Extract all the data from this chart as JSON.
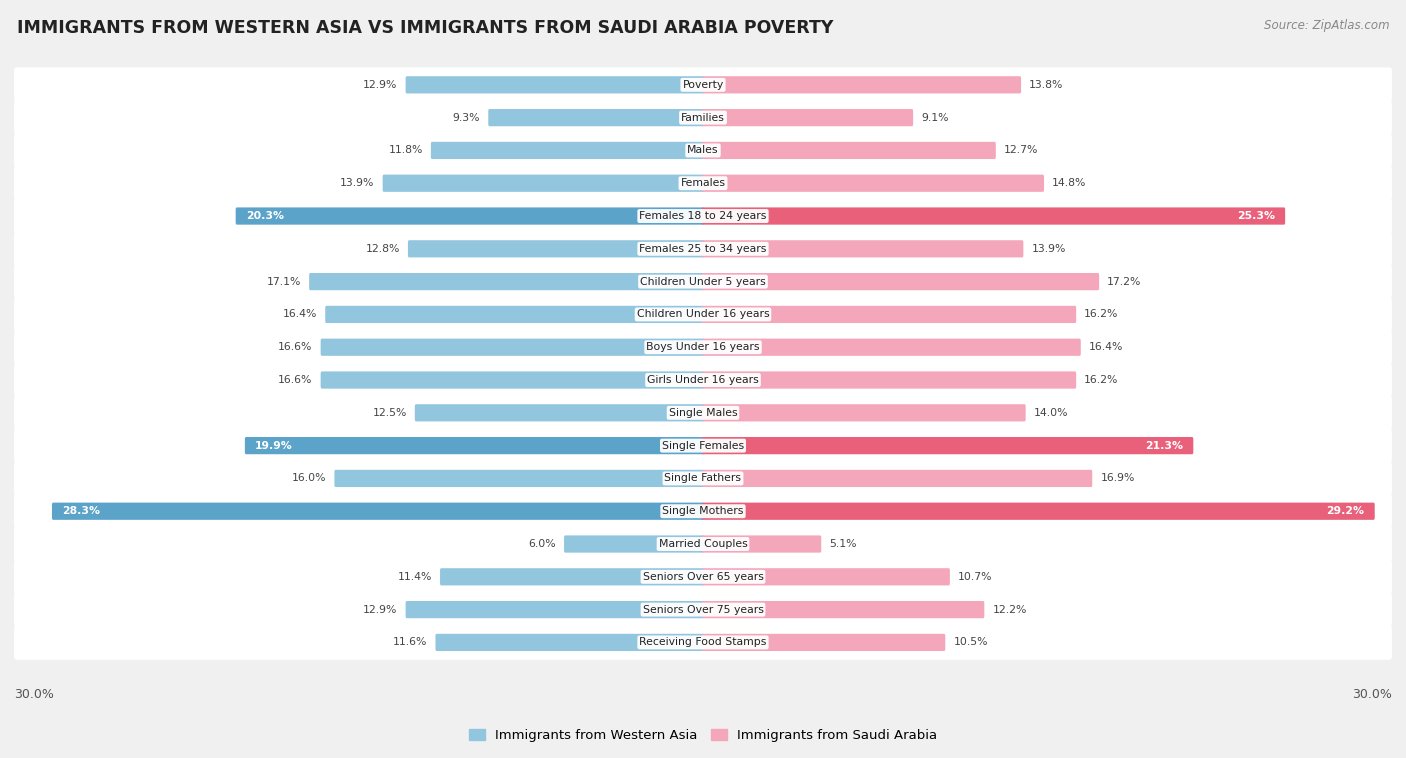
{
  "title": "IMMIGRANTS FROM WESTERN ASIA VS IMMIGRANTS FROM SAUDI ARABIA POVERTY",
  "source": "Source: ZipAtlas.com",
  "categories": [
    "Poverty",
    "Families",
    "Males",
    "Females",
    "Females 18 to 24 years",
    "Females 25 to 34 years",
    "Children Under 5 years",
    "Children Under 16 years",
    "Boys Under 16 years",
    "Girls Under 16 years",
    "Single Males",
    "Single Females",
    "Single Fathers",
    "Single Mothers",
    "Married Couples",
    "Seniors Over 65 years",
    "Seniors Over 75 years",
    "Receiving Food Stamps"
  ],
  "western_asia": [
    12.9,
    9.3,
    11.8,
    13.9,
    20.3,
    12.8,
    17.1,
    16.4,
    16.6,
    16.6,
    12.5,
    19.9,
    16.0,
    28.3,
    6.0,
    11.4,
    12.9,
    11.6
  ],
  "saudi_arabia": [
    13.8,
    9.1,
    12.7,
    14.8,
    25.3,
    13.9,
    17.2,
    16.2,
    16.4,
    16.2,
    14.0,
    21.3,
    16.9,
    29.2,
    5.1,
    10.7,
    12.2,
    10.5
  ],
  "color_western": "#92C5DE",
  "color_saudi": "#F4A6BB",
  "color_western_bold": "#5BA3C9",
  "color_saudi_bold": "#E8607A",
  "axis_limit": 30.0,
  "legend_label_western": "Immigrants from Western Asia",
  "legend_label_saudi": "Immigrants from Saudi Arabia",
  "background_color": "#f0f0f0",
  "bar_background": "#ffffff",
  "bold_threshold_western": 19.0,
  "bold_threshold_saudi": 20.0
}
